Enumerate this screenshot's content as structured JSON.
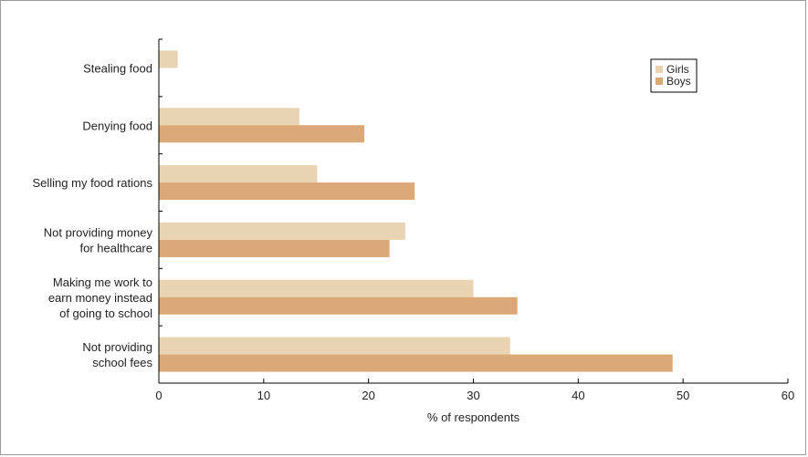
{
  "chart_data": {
    "type": "bar",
    "orientation": "horizontal",
    "categories": [
      [
        "Stealing food"
      ],
      [
        "Denying food"
      ],
      [
        "Selling my food rations"
      ],
      [
        "Not providing money",
        "for healthcare"
      ],
      [
        "Making me work to",
        "earn money instead",
        "of going to school"
      ],
      [
        "Not providing",
        "school fees"
      ]
    ],
    "series": [
      {
        "name": "Girls",
        "color": "#e8d3b2",
        "values": [
          1.8,
          13.4,
          15.1,
          23.5,
          30.0,
          33.5
        ]
      },
      {
        "name": "Boys",
        "color": "#dba978",
        "values": [
          null,
          19.6,
          24.4,
          22.0,
          34.2,
          49.0
        ]
      }
    ],
    "xlabel": "% of respondents",
    "xlim": [
      0,
      60
    ],
    "xticks": [
      0,
      10,
      20,
      30,
      40,
      50,
      60
    ],
    "legend_position": "top-right",
    "grid": false
  }
}
